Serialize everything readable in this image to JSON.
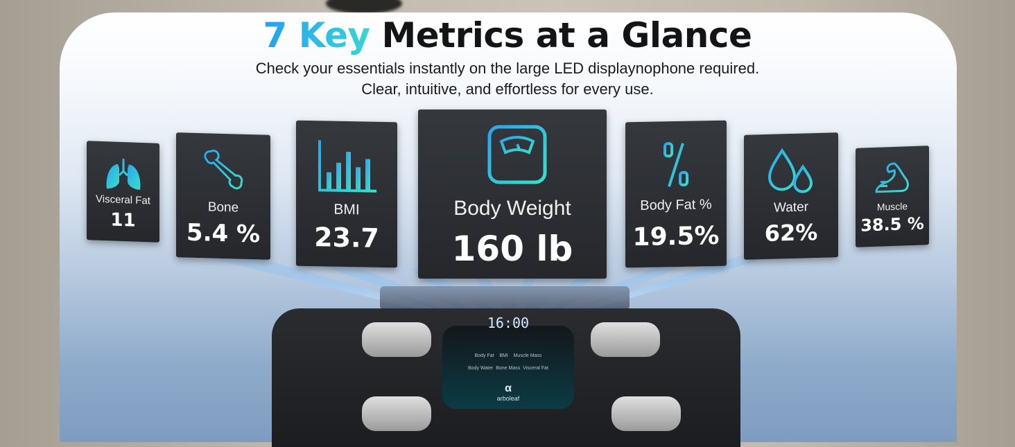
{
  "heading": {
    "accent": "7 Key",
    "rest": " Metrics at a Glance"
  },
  "subtitle": {
    "line1": "Check your essentials instantly on the large LED displaynophone required.",
    "line2": "Clear, intuitive, and effortless for every use."
  },
  "metrics": [
    {
      "label": "Visceral Fat",
      "value": "11",
      "icon": "lungs-icon"
    },
    {
      "label": "Bone",
      "value": "5.4 %",
      "icon": "bone-icon"
    },
    {
      "label": "BMI",
      "value": "23.7",
      "icon": "bar-chart-icon"
    },
    {
      "label": "Body Weight",
      "value": "160 lb",
      "icon": "scale-icon"
    },
    {
      "label": "Body Fat %",
      "value": "19.5%",
      "icon": "percent-icon"
    },
    {
      "label": "Water",
      "value": "62%",
      "icon": "water-drops-icon"
    },
    {
      "label": "Muscle",
      "value": "38.5 %",
      "icon": "flexed-arm-icon"
    }
  ],
  "scale_display": {
    "reading": "16:00",
    "row1": [
      "Body Fat",
      "BMI",
      "Muscle Mass"
    ],
    "row2": [
      "Body Water",
      "Bone Mass",
      "Visceral Fat"
    ],
    "brand": "arboleaf"
  },
  "colors": {
    "accent_start": "#27a0f0",
    "accent_end": "#36d6d6",
    "card_bg": "#2c2e33"
  }
}
